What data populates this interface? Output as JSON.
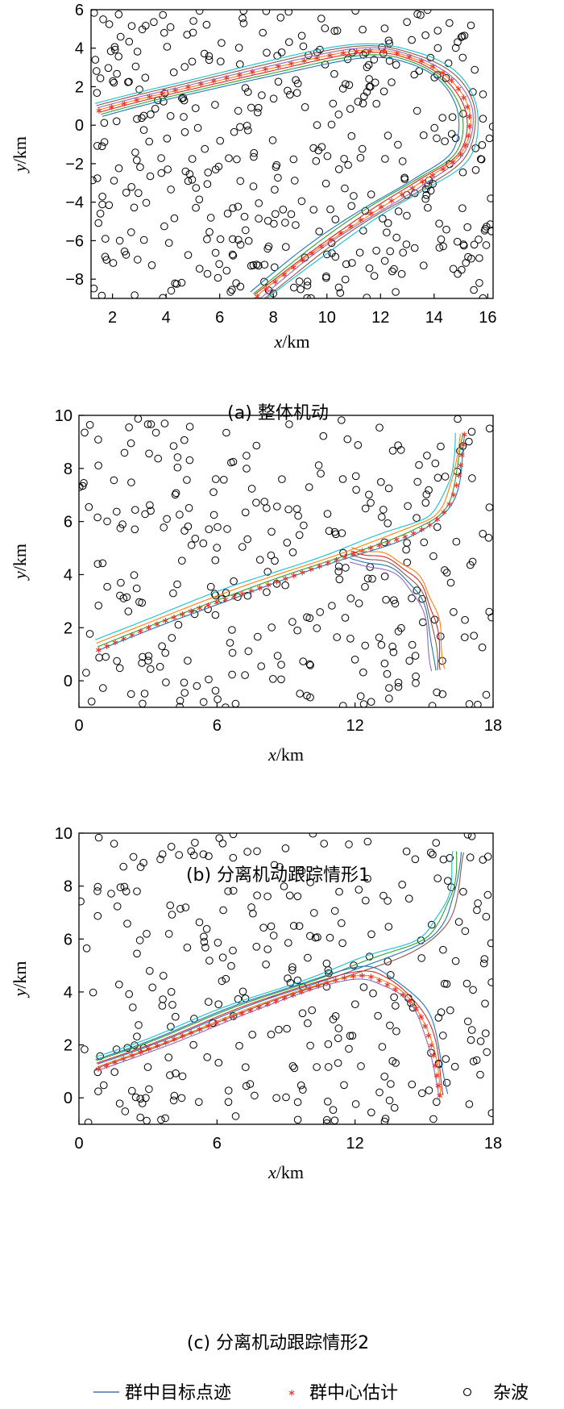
{
  "chart_data": [
    {
      "type": "scatter",
      "caption": "(a) 整体机动",
      "xlabel_var": "x",
      "xlabel_unit": "/km",
      "ylabel_var": "y",
      "ylabel_unit": "/km",
      "xlim": [
        1.2,
        16.2
      ],
      "ylim": [
        -9,
        6
      ],
      "xticks": [
        2,
        4,
        6,
        8,
        10,
        12,
        14,
        16
      ],
      "yticks": [
        -8,
        -6,
        -4,
        -2,
        0,
        2,
        4,
        6
      ],
      "trajectory": {
        "kind": "U-turn",
        "waypoints": [
          [
            1.5,
            0.75
          ],
          [
            4,
            1.7
          ],
          [
            8,
            3.0
          ],
          [
            11.3,
            3.85
          ],
          [
            13.2,
            3.5
          ],
          [
            14.6,
            2.4
          ],
          [
            15.3,
            0.6
          ],
          [
            15.0,
            -1.5
          ],
          [
            13.5,
            -3.0
          ],
          [
            11.5,
            -4.7
          ],
          [
            9.5,
            -6.6
          ],
          [
            7.4,
            -8.9
          ]
        ],
        "series_colors": [
          "#1f77b4",
          "#2ca02c",
          "#d62728",
          "#ff7f0e",
          "#9467bd",
          "#8c564b",
          "#17becf"
        ],
        "spread": 0.12
      },
      "centroid": {
        "color": "#e8342a",
        "count": 58
      },
      "clutter": {
        "count": 420,
        "seed": 7
      }
    },
    {
      "type": "scatter",
      "caption": "(b) 分离机动跟踪情形1",
      "xlabel_var": "x",
      "xlabel_unit": "/km",
      "ylabel_var": "y",
      "ylabel_unit": "/km",
      "xlim": [
        0,
        18
      ],
      "ylim": [
        -1,
        10
      ],
      "xticks": [
        0,
        6,
        12,
        18
      ],
      "yticks": [
        0,
        2,
        4,
        6,
        8,
        10
      ],
      "branches": [
        {
          "waypoints": [
            [
              0.8,
              1.3
            ],
            [
              4,
              2.5
            ],
            [
              8,
              3.7
            ],
            [
              11.8,
              4.9
            ],
            [
              14.5,
              5.7
            ],
            [
              15.7,
              6.4
            ],
            [
              16.3,
              7.5
            ],
            [
              16.6,
              9.3
            ]
          ],
          "colors": [
            "#1f77b4",
            "#2ca02c",
            "#ff7f0e",
            "#17becf"
          ],
          "centroid": true,
          "centroid_offset": 0.15
        },
        {
          "waypoints": [
            [
              11.8,
              4.7
            ],
            [
              13.2,
              4.5
            ],
            [
              14.5,
              3.8
            ],
            [
              15.3,
              2.4
            ],
            [
              15.6,
              0.4
            ]
          ],
          "colors": [
            "#9467bd",
            "#1f77b4",
            "#8c564b",
            "#d62728",
            "#ff7f0e"
          ],
          "centroid": false
        }
      ],
      "spread": 0.14,
      "centroid": {
        "color": "#e8342a",
        "count": 50
      },
      "clutter": {
        "count": 300,
        "seed": 19
      }
    },
    {
      "type": "scatter",
      "caption": "(c) 分离机动跟踪情形2",
      "xlabel_var": "x",
      "xlabel_unit": "/km",
      "ylabel_var": "y",
      "ylabel_unit": "/km",
      "xlim": [
        0,
        18
      ],
      "ylim": [
        -1,
        10
      ],
      "xticks": [
        0,
        6,
        12,
        18
      ],
      "yticks": [
        0,
        2,
        4,
        6,
        8,
        10
      ],
      "branches": [
        {
          "waypoints": [
            [
              0.8,
              1.3
            ],
            [
              4,
              2.4
            ],
            [
              8,
              3.7
            ],
            [
              11.8,
              4.9
            ],
            [
              14.5,
              5.7
            ],
            [
              15.7,
              6.6
            ],
            [
              16.3,
              7.8
            ],
            [
              16.5,
              9.3
            ]
          ],
          "colors": [
            "#8c564b",
            "#1f77b4",
            "#2ca02c",
            "#17becf"
          ],
          "centroid": false
        },
        {
          "waypoints": [
            [
              0.8,
              1.2
            ],
            [
              4,
              2.3
            ],
            [
              8,
              3.6
            ],
            [
              11.8,
              4.7
            ],
            [
              13.4,
              4.4
            ],
            [
              14.7,
              3.5
            ],
            [
              15.4,
              2.1
            ],
            [
              15.8,
              0.1
            ]
          ],
          "colors": [
            "#9467bd",
            "#ff7f0e",
            "#d62728",
            "#1f77b4"
          ],
          "centroid": true,
          "centroid_offset": 0.12
        }
      ],
      "spread": 0.14,
      "centroid": {
        "color": "#e8342a",
        "count": 48
      },
      "clutter": {
        "count": 300,
        "seed": 31
      }
    }
  ],
  "legend": {
    "track_label": "群中目标点迹",
    "track_color": "#4a72b0",
    "centroid_label": "群中心估计",
    "centroid_color": "#e8342a",
    "clutter_label": "杂波"
  }
}
